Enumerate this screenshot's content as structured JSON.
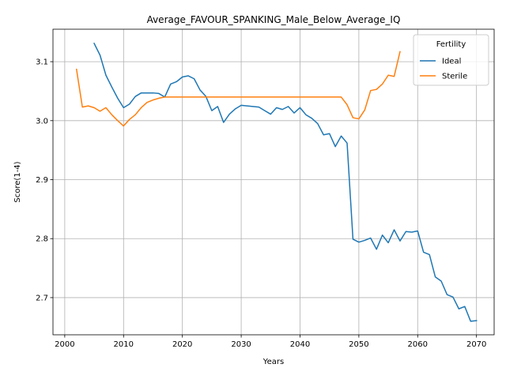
{
  "chart_data": {
    "type": "line",
    "title": "Average_FAVOUR_SPANKING_Male_Below_Average_IQ",
    "xlabel": "Years",
    "ylabel": "Score(1-4)",
    "xlim": [
      1998,
      2073
    ],
    "ylim": [
      2.637,
      3.155
    ],
    "xticks": [
      2000,
      2010,
      2020,
      2030,
      2040,
      2050,
      2060,
      2070
    ],
    "yticks": [
      2.7,
      2.8,
      2.9,
      3.0,
      3.1
    ],
    "ytick_labels": [
      "2.7",
      "2.8",
      "2.9",
      "3.0",
      "3.1"
    ],
    "grid": true,
    "legend": {
      "title": "Fertility",
      "placement": "top-right",
      "entries": [
        "Ideal",
        "Sterile"
      ]
    },
    "colors": {
      "Ideal": "#1f77b4",
      "Sterile": "#ff7f0e"
    },
    "series": [
      {
        "name": "Ideal",
        "x": [
          2005,
          2006,
          2007,
          2008,
          2009,
          2010,
          2011,
          2012,
          2013,
          2014,
          2015,
          2016,
          2017,
          2018,
          2019,
          2020,
          2021,
          2022,
          2023,
          2024,
          2025,
          2026,
          2027,
          2028,
          2029,
          2030,
          2031,
          2032,
          2033,
          2034,
          2035,
          2036,
          2037,
          2038,
          2039,
          2040,
          2041,
          2042,
          2043,
          2044,
          2045,
          2046,
          2047,
          2048,
          2049,
          2050,
          2051,
          2052,
          2053,
          2054,
          2055,
          2056,
          2057,
          2058,
          2059,
          2060,
          2061,
          2062,
          2063,
          2064,
          2065,
          2066,
          2067,
          2068,
          2069,
          2070
        ],
        "y": [
          3.131,
          3.111,
          3.077,
          3.057,
          3.038,
          3.022,
          3.028,
          3.041,
          3.047,
          3.047,
          3.047,
          3.046,
          3.04,
          3.062,
          3.066,
          3.074,
          3.076,
          3.071,
          3.052,
          3.041,
          3.017,
          3.024,
          2.997,
          3.011,
          3.02,
          3.026,
          3.025,
          3.024,
          3.023,
          3.017,
          3.011,
          3.022,
          3.019,
          3.024,
          3.013,
          3.022,
          3.01,
          3.004,
          2.995,
          2.976,
          2.978,
          2.956,
          2.974,
          2.962,
          2.799,
          2.794,
          2.797,
          2.801,
          2.782,
          2.806,
          2.793,
          2.815,
          2.796,
          2.812,
          2.811,
          2.813,
          2.777,
          2.773,
          2.735,
          2.728,
          2.705,
          2.701,
          2.681,
          2.685,
          2.66,
          2.661
        ]
      },
      {
        "name": "Sterile",
        "x": [
          2002,
          2003,
          2004,
          2005,
          2006,
          2007,
          2008,
          2009,
          2010,
          2011,
          2012,
          2013,
          2014,
          2015,
          2016,
          2017,
          2018,
          2019,
          2020,
          2021,
          2022,
          2023,
          2024,
          2025,
          2026,
          2027,
          2028,
          2029,
          2030,
          2031,
          2032,
          2033,
          2034,
          2035,
          2036,
          2037,
          2038,
          2039,
          2040,
          2041,
          2042,
          2043,
          2044,
          2045,
          2046,
          2047,
          2048,
          2049,
          2050,
          2051,
          2052,
          2053,
          2054,
          2055,
          2056,
          2057
        ],
        "y": [
          3.087,
          3.023,
          3.025,
          3.022,
          3.016,
          3.022,
          3.01,
          3.0,
          2.991,
          3.002,
          3.01,
          3.022,
          3.031,
          3.035,
          3.038,
          3.04,
          3.04,
          3.04,
          3.04,
          3.04,
          3.04,
          3.04,
          3.04,
          3.04,
          3.04,
          3.04,
          3.04,
          3.04,
          3.04,
          3.04,
          3.04,
          3.04,
          3.04,
          3.04,
          3.04,
          3.04,
          3.04,
          3.04,
          3.04,
          3.04,
          3.04,
          3.04,
          3.04,
          3.04,
          3.04,
          3.04,
          3.027,
          3.005,
          3.003,
          3.018,
          3.051,
          3.053,
          3.062,
          3.077,
          3.075,
          3.117
        ]
      }
    ]
  }
}
